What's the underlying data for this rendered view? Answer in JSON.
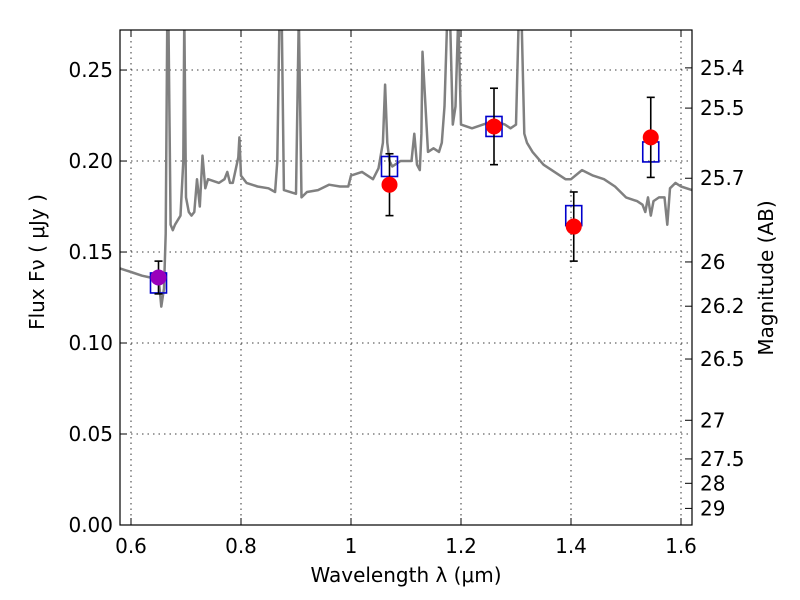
{
  "chart_data": {
    "type": "scatter",
    "xlabel": "Wavelength  λ (μm)",
    "ylabel": "Flux  Fν  ( μJy )",
    "ylabel_right": "Magnitude (AB)",
    "xlim": [
      0.58,
      1.62
    ],
    "ylim": [
      0.0,
      0.272
    ],
    "grid": true,
    "x_ticks": [
      0.6,
      0.8,
      1.0,
      1.2,
      1.4,
      1.6
    ],
    "x_tick_labels": [
      "0.6",
      "0.8",
      "1",
      "1.2",
      "1.4",
      "1.6"
    ],
    "y_ticks": [
      0.0,
      0.05,
      0.1,
      0.15,
      0.2,
      0.25
    ],
    "y_tick_labels": [
      "0.00",
      "0.05",
      "0.10",
      "0.15",
      "0.20",
      "0.25"
    ],
    "mag_ticks": [
      25.4,
      25.5,
      25.7,
      26,
      26.2,
      26.5,
      27,
      27.5,
      28,
      29
    ],
    "mag_tick_labels": [
      "25.4",
      "25.5",
      "25.7",
      "26",
      "26.2",
      "26.5",
      "27",
      "27.5",
      "28",
      "29"
    ],
    "colors": {
      "template": "#808080",
      "model": "#0000cc",
      "observed": "#ff0000",
      "observed_blue_band": "#9900bb",
      "errorbar": "#000000"
    },
    "template_spectrum": {
      "x": [
        0.58,
        0.6,
        0.62,
        0.635,
        0.65,
        0.652,
        0.655,
        0.66,
        0.663,
        0.666,
        0.668,
        0.672,
        0.676,
        0.68,
        0.69,
        0.695,
        0.697,
        0.7,
        0.705,
        0.71,
        0.715,
        0.72,
        0.725,
        0.73,
        0.735,
        0.74,
        0.76,
        0.77,
        0.775,
        0.78,
        0.785,
        0.795,
        0.797,
        0.8,
        0.81,
        0.83,
        0.85,
        0.862,
        0.866,
        0.87,
        0.874,
        0.878,
        0.9,
        0.905,
        0.91,
        0.92,
        0.94,
        0.96,
        0.98,
        0.995,
        1.0,
        1.02,
        1.04,
        1.05,
        1.058,
        1.062,
        1.066,
        1.07,
        1.075,
        1.08,
        1.09,
        1.1,
        1.11,
        1.115,
        1.12,
        1.125,
        1.128,
        1.13,
        1.14,
        1.15,
        1.16,
        1.165,
        1.17,
        1.175,
        1.18,
        1.185,
        1.19,
        1.195,
        1.2,
        1.22,
        1.24,
        1.26,
        1.28,
        1.29,
        1.3,
        1.305,
        1.31,
        1.315,
        1.32,
        1.33,
        1.35,
        1.37,
        1.39,
        1.4,
        1.42,
        1.44,
        1.46,
        1.48,
        1.5,
        1.52,
        1.53,
        1.535,
        1.54,
        1.545,
        1.55,
        1.56,
        1.57,
        1.575,
        1.58,
        1.59,
        1.6,
        1.62
      ],
      "y": [
        0.141,
        0.139,
        0.137,
        0.136,
        0.135,
        0.13,
        0.12,
        0.13,
        0.16,
        0.28,
        0.28,
        0.165,
        0.162,
        0.165,
        0.17,
        0.2,
        0.28,
        0.18,
        0.172,
        0.17,
        0.172,
        0.19,
        0.175,
        0.203,
        0.185,
        0.19,
        0.188,
        0.19,
        0.194,
        0.188,
        0.188,
        0.202,
        0.213,
        0.192,
        0.188,
        0.186,
        0.185,
        0.183,
        0.2,
        0.28,
        0.28,
        0.184,
        0.182,
        0.28,
        0.18,
        0.183,
        0.184,
        0.187,
        0.186,
        0.186,
        0.192,
        0.194,
        0.19,
        0.196,
        0.21,
        0.242,
        0.21,
        0.2,
        0.197,
        0.198,
        0.2,
        0.2,
        0.2,
        0.215,
        0.198,
        0.195,
        0.215,
        0.26,
        0.205,
        0.207,
        0.205,
        0.21,
        0.23,
        0.28,
        0.28,
        0.22,
        0.23,
        0.28,
        0.22,
        0.218,
        0.22,
        0.222,
        0.22,
        0.218,
        0.22,
        0.28,
        0.28,
        0.215,
        0.21,
        0.205,
        0.198,
        0.194,
        0.19,
        0.19,
        0.195,
        0.192,
        0.19,
        0.186,
        0.18,
        0.178,
        0.176,
        0.172,
        0.18,
        0.17,
        0.178,
        0.18,
        0.18,
        0.165,
        0.185,
        0.188,
        0.186,
        0.184
      ]
    },
    "model_points": {
      "x": [
        0.65,
        1.07,
        1.26,
        1.405,
        1.545
      ],
      "y": [
        0.133,
        0.197,
        0.219,
        0.17,
        0.205
      ]
    },
    "observed_points": {
      "x": [
        0.65,
        1.07,
        1.26,
        1.405,
        1.545
      ],
      "y": [
        0.136,
        0.187,
        0.219,
        0.164,
        0.213
      ],
      "yerr": [
        0.009,
        0.017,
        0.021,
        0.019,
        0.022
      ]
    }
  }
}
